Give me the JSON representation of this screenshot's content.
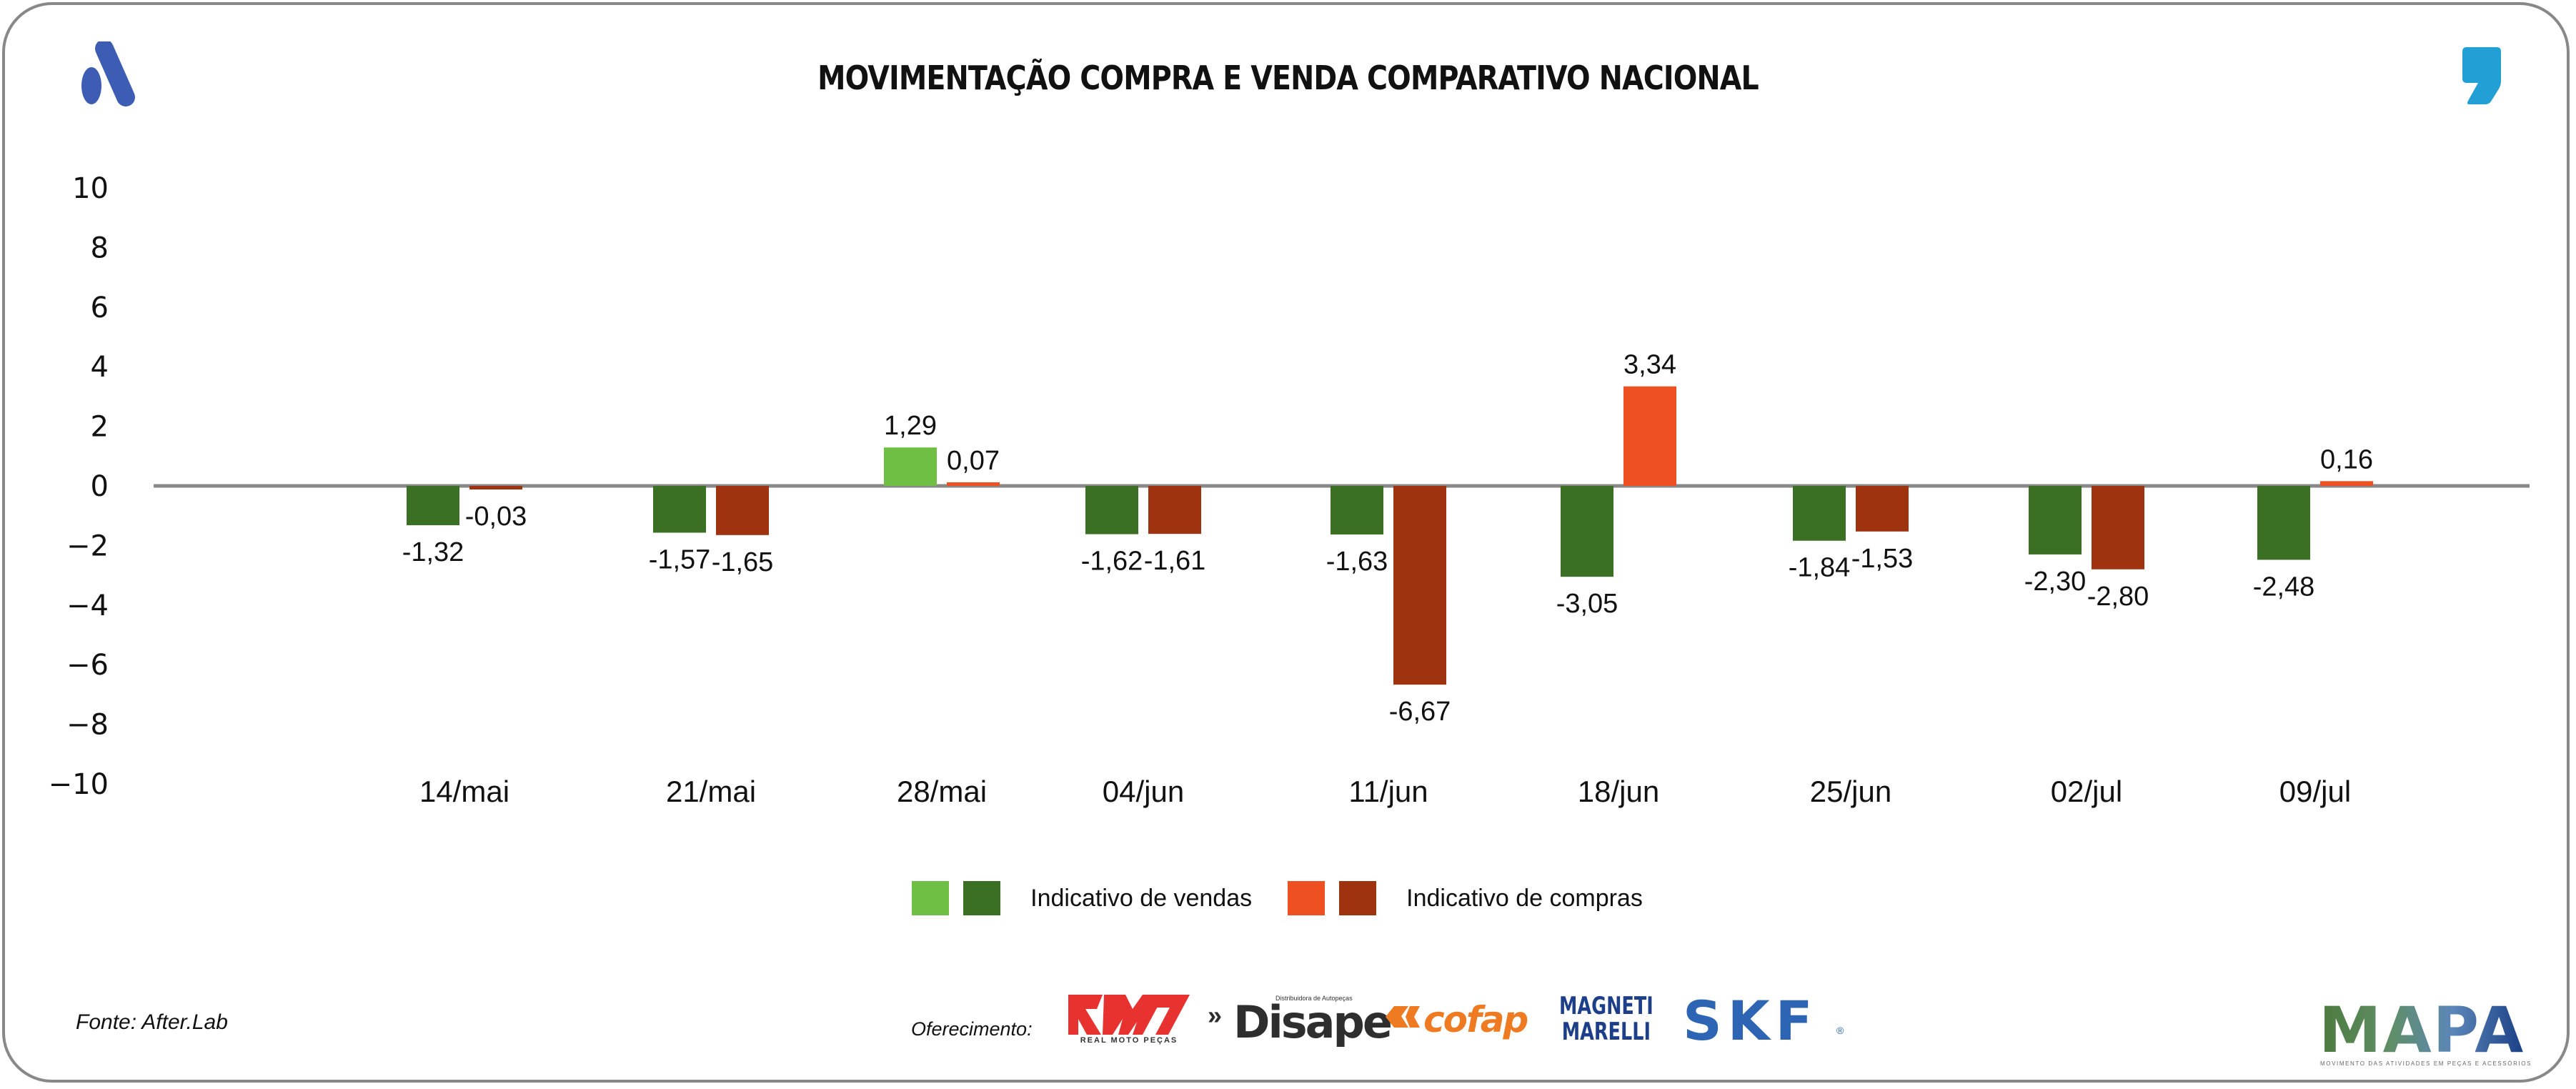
{
  "header": {
    "title": "MOVIMENTAÇÃO COMPRA E VENDA COMPARATIVO NACIONAL",
    "left_logo_icon": "brand-a-logo-icon",
    "right_logo_icon": "comma-logo-icon"
  },
  "colors": {
    "sales_positive": "#6fbf44",
    "sales_negative": "#3b7024",
    "purchases_positive": "#ee5022",
    "purchases_negative": "#a0330f",
    "zero_line": "#888888",
    "brand_blue": "#3d5db5",
    "comma_blue": "#22a0d6"
  },
  "chart_data": {
    "type": "bar",
    "title": "MOVIMENTAÇÃO COMPRA E VENDA COMPARATIVO NACIONAL",
    "xlabel": "",
    "ylabel": "",
    "ylim": [
      -10,
      10
    ],
    "yticks": [
      10,
      8,
      6,
      4,
      2,
      0,
      -2,
      -4,
      -6,
      -8,
      -10
    ],
    "grid": false,
    "legend_position": "bottom",
    "categories": [
      "14/mai",
      "21/mai",
      "28/mai",
      "04/jun",
      "11/jun",
      "18/jun",
      "25/jun",
      "02/jul",
      "09/jul"
    ],
    "series": [
      {
        "name": "Indicativo de vendas",
        "values": [
          -1.32,
          -1.57,
          1.29,
          -1.62,
          -1.63,
          -3.05,
          -1.84,
          -2.3,
          -2.48
        ],
        "labels": [
          "-1,32",
          "-1,57",
          "1,29",
          "-1,62",
          "-1,63",
          "-3,05",
          "-1,84",
          "-2,30",
          "-2,48"
        ]
      },
      {
        "name": "Indicativo de compras",
        "values": [
          -0.03,
          -1.65,
          0.07,
          -1.61,
          -6.67,
          3.34,
          -1.53,
          -2.8,
          0.16
        ],
        "labels": [
          "-0,03",
          "-1,65",
          "0,07",
          "-1,61",
          "-6,67",
          "3,34",
          "-1,53",
          "-2,80",
          "0,16"
        ]
      }
    ]
  },
  "legend": {
    "items": [
      {
        "label": "Indicativo de vendas"
      },
      {
        "label": "Indicativo de compras"
      }
    ]
  },
  "footer": {
    "source": "Fonte: After.Lab",
    "sponsor_label": "Oferecimento:",
    "sponsors": [
      {
        "name": "RMP",
        "subtitle": "REAL MOTO PEÇAS"
      },
      {
        "name": "Disape",
        "subtitle": "Distribuidora de Autopeças"
      },
      {
        "name": "cofap"
      },
      {
        "name": "MAGNETI MARELLI",
        "line1": "MAGNETI",
        "line2": "MARELLI"
      },
      {
        "name": "SKF"
      }
    ],
    "mapa": {
      "name": "MAPA",
      "subtitle": "MOVIMENTO DAS ATIVIDADES EM PEÇAS E ACESSÓRIOS"
    }
  }
}
